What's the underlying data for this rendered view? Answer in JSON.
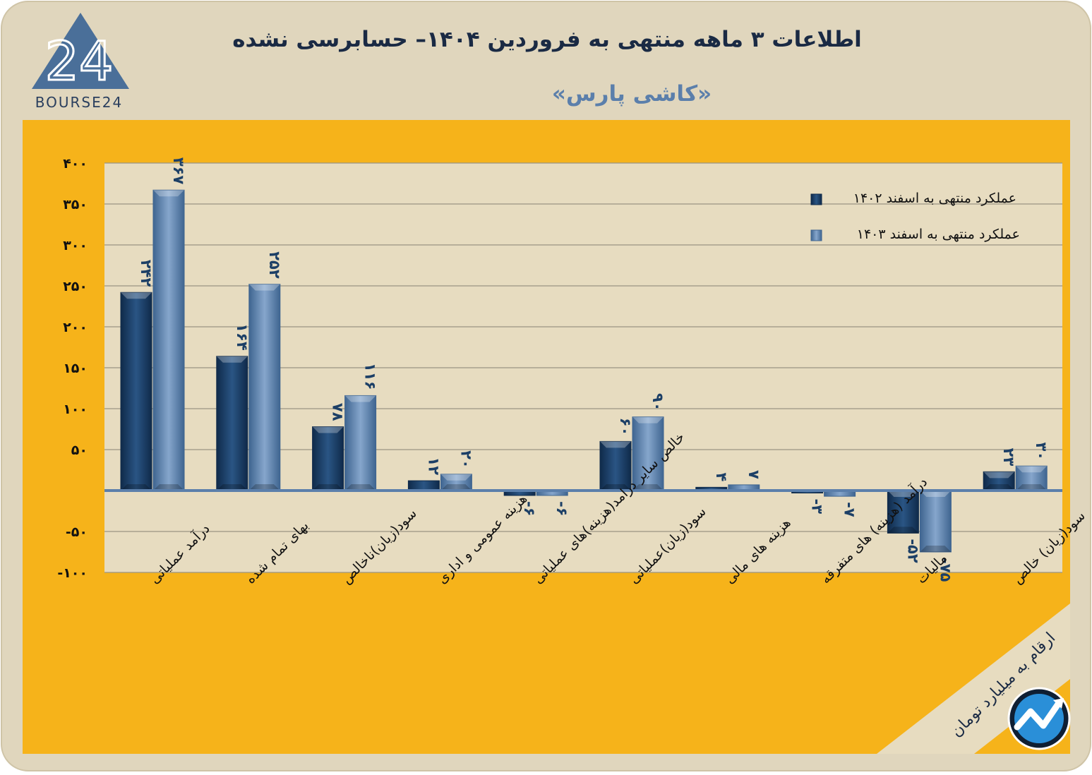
{
  "header": {
    "title": "اطلاعات ۳ ماهه منتهی به فروردین ۱۴۰۴– حسابرسی نشده",
    "subtitle": "«کاشی پارس»",
    "brand_text": "BOURSE24",
    "logo_mark": "24"
  },
  "footer": {
    "units_note": "ارقام به میلیارد تومان"
  },
  "colors": {
    "frame_bg": "#e0d6bd",
    "panel_orange": "#f6b31a",
    "plot_bg": "#e7dcc0",
    "series_1402": "#1c3f66",
    "series_1403": "#5b7fab",
    "logo_blue": "#4a6f99",
    "title_text": "#1a2a44"
  },
  "chart_data": {
    "type": "bar",
    "title": "اطلاعات ۳ ماهه منتهی به فروردین ۱۴۰۴– حسابرسی نشده",
    "ylim": [
      -100,
      400
    ],
    "y_ticks": [
      400,
      350,
      300,
      250,
      200,
      150,
      100,
      50,
      0,
      -50,
      -100
    ],
    "y_tick_labels": [
      "۴۰۰",
      "۳۵۰",
      "۳۰۰",
      "۲۵۰",
      "۲۰۰",
      "۱۵۰",
      "۱۰۰",
      "۵۰",
      "",
      "-۵۰",
      "-۱۰۰"
    ],
    "grid": true,
    "legend_position": "top-right",
    "categories": [
      "درآمد عملیاتی",
      "بهای تمام شده",
      "سود(زیان)ناخالص",
      "هزینه عمومی و اداری",
      "خالص سایر درامد(هزینه)های عملیاتی",
      "سود(زیان)عملیاتی",
      "هزینه های مالی",
      "درآمد (هزینه) های متفرقه",
      "مالیات",
      "سود(زیان) خالص"
    ],
    "series": [
      {
        "name": "عملکرد منتهی به اسفند ۱۴۰۲",
        "values": [
          242,
          164,
          78,
          12,
          -6,
          60,
          4,
          -3,
          -52,
          23
        ],
        "labels": [
          "۲۴۲",
          "۱۶۴",
          "۷۸",
          "۱۲",
          "-۶",
          "۶۰",
          "۴",
          "-۳",
          "-۵۲",
          "۲۳"
        ]
      },
      {
        "name": "عملکرد منتهی به اسفند ۱۴۰۳",
        "values": [
          367,
          252,
          116,
          20,
          -6,
          90,
          7,
          -7,
          -75,
          30
        ],
        "labels": [
          "۳۶۷",
          "۲۵۲",
          "۱۱۶",
          "۲۰",
          "-۶",
          "۹۰",
          "۷",
          "-۷",
          "-۷۵",
          "۳۰"
        ]
      }
    ]
  }
}
